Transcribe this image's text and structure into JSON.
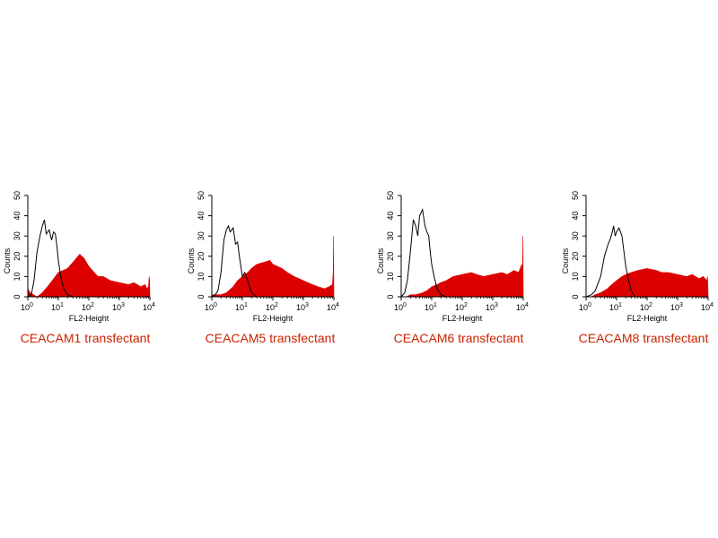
{
  "colors": {
    "filled": "#dd0000",
    "outline": "#000000",
    "caption": "#cc2200"
  },
  "chart_data": [
    {
      "type": "area",
      "caption": "CEACAM1 transfectant",
      "xlabel": "FL2-Height",
      "ylabel": "Counts",
      "xscale": "log",
      "xlim": [
        1,
        10000
      ],
      "ylim": [
        0,
        50
      ],
      "yticks": [
        "0",
        "10",
        "20",
        "30",
        "40",
        "50"
      ],
      "xticks": [
        {
          "base": "10",
          "exp": "0"
        },
        {
          "base": "10",
          "exp": "1"
        },
        {
          "base": "10",
          "exp": "2"
        },
        {
          "base": "10",
          "exp": "3"
        },
        {
          "base": "10",
          "exp": "4"
        }
      ],
      "series": [
        {
          "style": "outline",
          "x": [
            1,
            1.3,
            1.6,
            2,
            2.5,
            3,
            3.5,
            4,
            5,
            6,
            7,
            8,
            9,
            10,
            12,
            15,
            20,
            30
          ],
          "y": [
            0,
            1,
            8,
            22,
            30,
            35,
            38,
            31,
            33,
            28,
            32,
            31,
            25,
            18,
            10,
            4,
            1,
            0
          ]
        },
        {
          "style": "filled",
          "x": [
            1,
            1.2,
            2,
            3,
            5,
            10,
            20,
            30,
            50,
            70,
            100,
            150,
            200,
            300,
            500,
            1000,
            2000,
            3000,
            5000,
            7000,
            8000,
            9000,
            9500,
            9800,
            10000
          ],
          "y": [
            4,
            2,
            0,
            2,
            6,
            12,
            14,
            17,
            21,
            19,
            15,
            12,
            10,
            10,
            8,
            7,
            6,
            7,
            5,
            6,
            4,
            5,
            10,
            8,
            0
          ]
        }
      ]
    },
    {
      "type": "area",
      "caption": "CEACAM5 transfectant",
      "xlabel": "FL2-Height",
      "ylabel": "Counts",
      "xscale": "log",
      "xlim": [
        1,
        10000
      ],
      "ylim": [
        0,
        50
      ],
      "yticks": [
        "0",
        "10",
        "20",
        "30",
        "40",
        "50"
      ],
      "xticks": [
        {
          "base": "10",
          "exp": "0"
        },
        {
          "base": "10",
          "exp": "1"
        },
        {
          "base": "10",
          "exp": "2"
        },
        {
          "base": "10",
          "exp": "3"
        },
        {
          "base": "10",
          "exp": "4"
        }
      ],
      "series": [
        {
          "style": "outline",
          "x": [
            1,
            1.3,
            1.6,
            2,
            2.5,
            3,
            3.5,
            4,
            5,
            6,
            7,
            8,
            9,
            10,
            12,
            15,
            20,
            30
          ],
          "y": [
            0,
            1,
            3,
            12,
            28,
            33,
            35,
            32,
            34,
            26,
            27,
            20,
            15,
            10,
            12,
            8,
            2,
            0
          ]
        },
        {
          "style": "filled",
          "x": [
            1,
            2,
            3,
            5,
            7,
            10,
            15,
            20,
            30,
            50,
            80,
            100,
            200,
            300,
            500,
            1000,
            2000,
            3000,
            5000,
            7000,
            9000,
            9500,
            9800,
            10000
          ],
          "y": [
            1,
            1,
            2,
            5,
            8,
            10,
            12,
            14,
            16,
            17,
            18,
            16,
            14,
            12,
            10,
            8,
            6,
            5,
            4,
            5,
            6,
            12,
            30,
            0
          ]
        }
      ]
    },
    {
      "type": "area",
      "caption": "CEACAM6 transfectant",
      "xlabel": "FL2-Height",
      "ylabel": "Counts",
      "xscale": "log",
      "xlim": [
        1,
        10000
      ],
      "ylim": [
        0,
        50
      ],
      "yticks": [
        "0",
        "10",
        "20",
        "30",
        "40",
        "50"
      ],
      "xticks": [
        {
          "base": "10",
          "exp": "0"
        },
        {
          "base": "10",
          "exp": "1"
        },
        {
          "base": "10",
          "exp": "2"
        },
        {
          "base": "10",
          "exp": "3"
        },
        {
          "base": "10",
          "exp": "4"
        }
      ],
      "series": [
        {
          "style": "outline",
          "x": [
            1,
            1.3,
            1.6,
            2,
            2.5,
            3,
            3.5,
            4,
            5,
            6,
            7,
            8,
            9,
            10,
            12,
            15,
            20,
            30
          ],
          "y": [
            0,
            2,
            8,
            22,
            38,
            35,
            30,
            40,
            43,
            35,
            32,
            30,
            22,
            16,
            10,
            4,
            1,
            0
          ]
        },
        {
          "style": "filled",
          "x": [
            1,
            1.5,
            2,
            3,
            5,
            7,
            10,
            15,
            20,
            30,
            50,
            100,
            200,
            300,
            500,
            1000,
            2000,
            3000,
            5000,
            7000,
            8000,
            9000,
            9500,
            9800,
            10000
          ],
          "y": [
            0,
            0,
            1,
            1,
            2,
            3,
            5,
            6,
            7,
            8,
            10,
            11,
            12,
            11,
            10,
            11,
            12,
            11,
            13,
            12,
            14,
            16,
            13,
            30,
            0
          ]
        }
      ]
    },
    {
      "type": "area",
      "caption": "CEACAM8 transfectant",
      "xlabel": "FL2-Height",
      "ylabel": "Counts",
      "xscale": "log",
      "xlim": [
        1,
        10000
      ],
      "ylim": [
        0,
        50
      ],
      "yticks": [
        "0",
        "10",
        "20",
        "30",
        "40",
        "50"
      ],
      "xticks": [
        {
          "base": "10",
          "exp": "0"
        },
        {
          "base": "10",
          "exp": "1"
        },
        {
          "base": "10",
          "exp": "2"
        },
        {
          "base": "10",
          "exp": "3"
        },
        {
          "base": "10",
          "exp": "4"
        }
      ],
      "series": [
        {
          "style": "outline",
          "x": [
            1,
            1.5,
            2,
            3,
            4,
            5,
            6,
            7,
            8,
            9,
            10,
            12,
            15,
            20,
            25,
            30,
            40
          ],
          "y": [
            0,
            1,
            3,
            10,
            20,
            25,
            28,
            31,
            35,
            30,
            32,
            34,
            30,
            15,
            8,
            3,
            0
          ]
        },
        {
          "style": "filled",
          "x": [
            1,
            1.5,
            2,
            3,
            5,
            7,
            10,
            15,
            20,
            30,
            50,
            100,
            200,
            300,
            500,
            1000,
            2000,
            3000,
            5000,
            7000,
            9000,
            9500,
            9800,
            10000
          ],
          "y": [
            0,
            0,
            1,
            2,
            4,
            6,
            8,
            10,
            11,
            12,
            13,
            14,
            13,
            12,
            12,
            11,
            10,
            11,
            9,
            10,
            8,
            10,
            6,
            0
          ]
        }
      ]
    }
  ]
}
